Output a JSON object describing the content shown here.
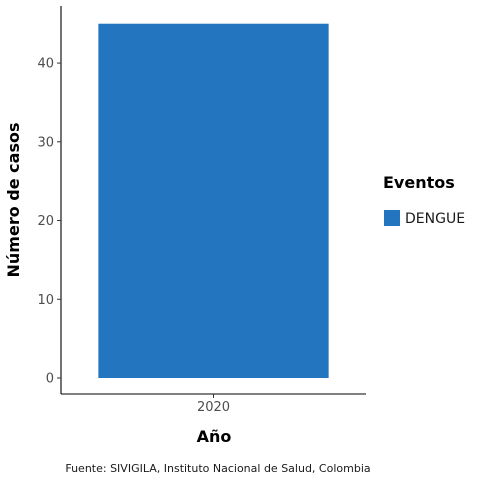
{
  "chart_data": {
    "type": "bar",
    "categories": [
      "2020"
    ],
    "series": [
      {
        "name": "DENGUE",
        "values": [
          45
        ],
        "color": "#2375BF"
      }
    ],
    "xlabel": "Año",
    "ylabel": "Número de casos",
    "ylim": [
      0,
      47.25
    ],
    "yticks": [
      0,
      10,
      20,
      30,
      40
    ],
    "grid": false,
    "legend": {
      "title": "Eventos",
      "position": "right"
    },
    "caption": "Fuente: SIVIGILA, Instituto Nacional de Salud, Colombia"
  }
}
